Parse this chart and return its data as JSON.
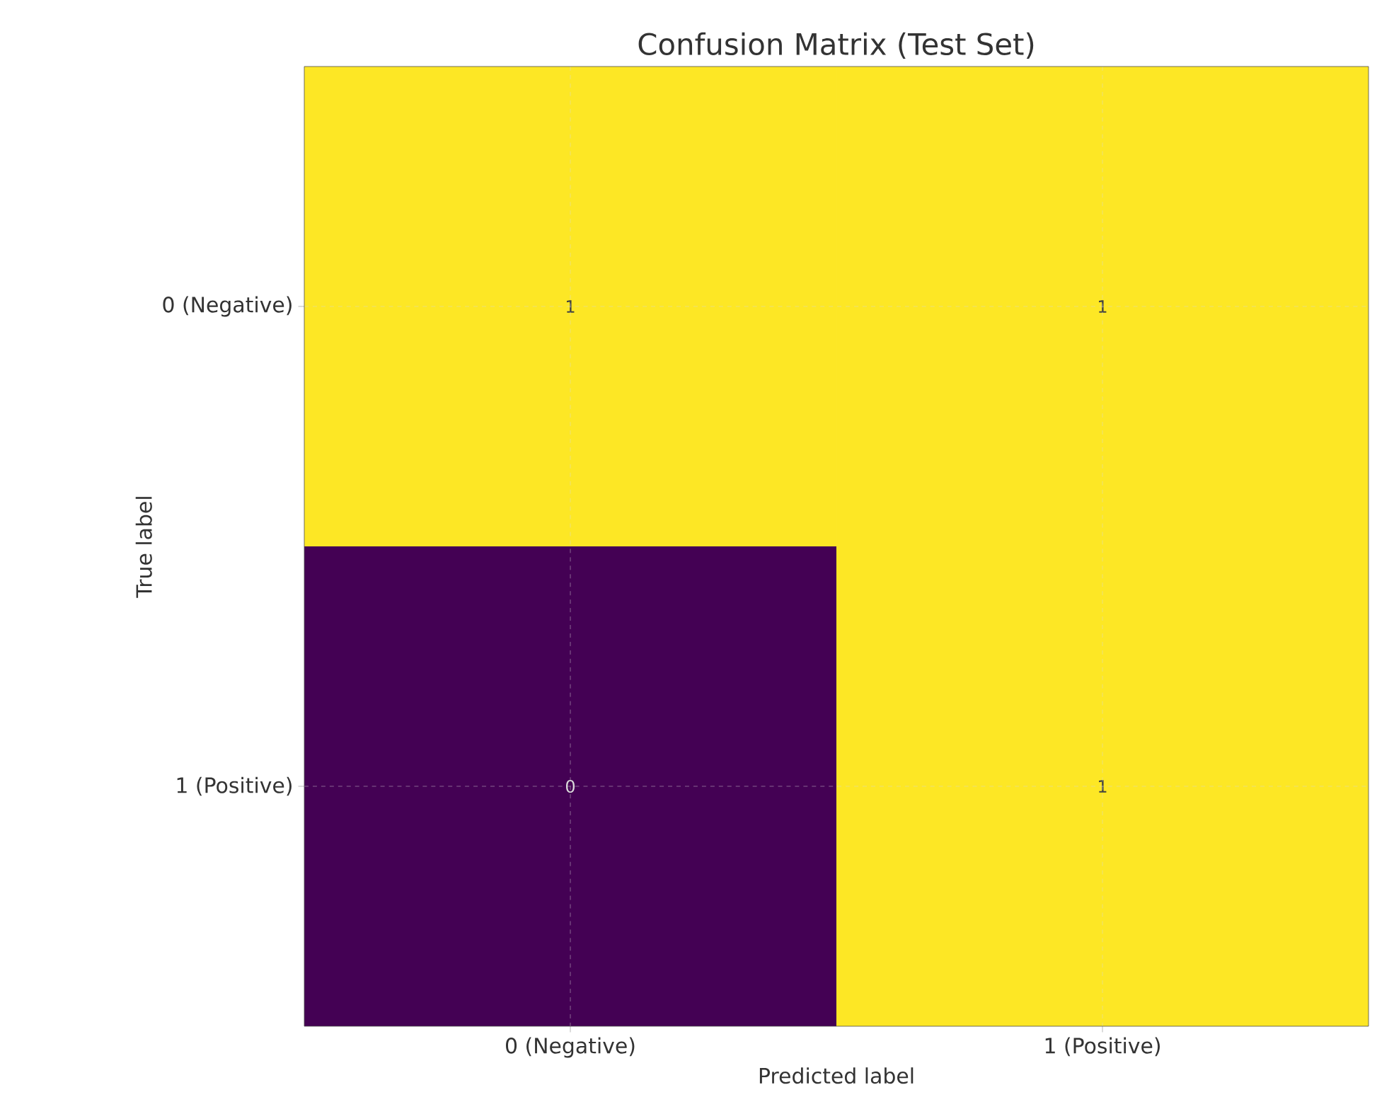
{
  "chart_data": {
    "type": "heatmap",
    "title": "Confusion Matrix (Test Set)",
    "xlabel": "Predicted label",
    "ylabel": "True label",
    "categories": [
      "0 (Negative)",
      "1 (Positive)"
    ],
    "y_categories": [
      "0 (Negative)",
      "1 (Positive)"
    ],
    "cells": [
      [
        1,
        1
      ],
      [
        0,
        1
      ]
    ],
    "data_labels": true,
    "grid": true
  }
}
